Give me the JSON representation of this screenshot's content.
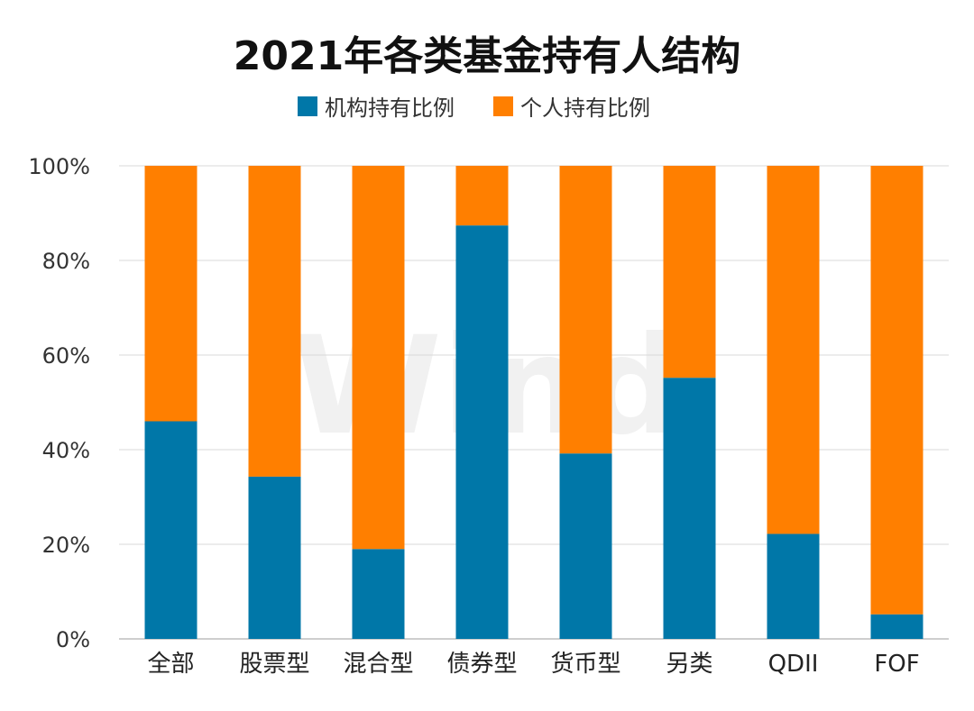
{
  "chart_data": {
    "type": "bar",
    "stacked": true,
    "title": "2021年各类基金持有人结构",
    "categories": [
      "全部",
      "股票型",
      "混合型",
      "债券型",
      "货币型",
      "另类",
      "QDII",
      "FOF"
    ],
    "series": [
      {
        "name": "机构持有比例",
        "values": [
          46,
          34.3,
          19,
          87.4,
          39.2,
          55.2,
          22.2,
          5.2
        ],
        "color": "#0077a8"
      },
      {
        "name": "个人持有比例",
        "values": [
          54,
          65.7,
          81,
          12.6,
          60.8,
          44.8,
          77.8,
          94.8
        ],
        "color": "#ff7f00"
      }
    ],
    "ylim": [
      0,
      100
    ],
    "yticks": [
      "0%",
      "20%",
      "40%",
      "60%",
      "80%",
      "100%"
    ],
    "ytick_values": [
      0,
      20,
      40,
      60,
      80,
      100
    ],
    "legend_position": "top-center",
    "grid": true,
    "watermark": "Wind"
  }
}
